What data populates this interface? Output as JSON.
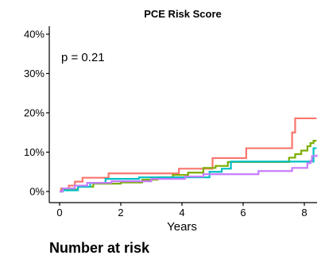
{
  "chart_data": {
    "type": "line",
    "title": "PCE Risk Score",
    "xlabel": "Years",
    "ylabel": "",
    "xlim": [
      -0.3,
      8.4
    ],
    "ylim": [
      -0.5,
      42
    ],
    "x_ticks": [
      0,
      2,
      4,
      6,
      8
    ],
    "x_tick_labels": [
      "0",
      "2",
      "4",
      "6",
      "8"
    ],
    "y_ticks": [
      0,
      10,
      20,
      30,
      40
    ],
    "y_tick_labels": [
      "0%",
      "10%",
      "20%",
      "30%",
      "40%"
    ],
    "grid": false,
    "annotations": [
      "p = 0.21"
    ],
    "series": [
      {
        "color": "#F8766D",
        "points": [
          [
            0,
            0
          ],
          [
            0.05,
            0.8
          ],
          [
            0.25,
            0.8
          ],
          [
            0.3,
            1.5
          ],
          [
            0.45,
            1.5
          ],
          [
            0.5,
            2.5
          ],
          [
            0.7,
            2.5
          ],
          [
            0.75,
            3.5
          ],
          [
            1.5,
            3.5
          ],
          [
            1.6,
            4.6
          ],
          [
            3.8,
            4.6
          ],
          [
            3.9,
            5.8
          ],
          [
            4.9,
            5.8
          ],
          [
            5,
            8.5
          ],
          [
            6,
            8.5
          ],
          [
            6.1,
            11
          ],
          [
            7.5,
            11
          ],
          [
            7.6,
            15
          ],
          [
            7.7,
            18.6
          ],
          [
            8.4,
            18.6
          ]
        ]
      },
      {
        "color": "#7CAE00",
        "points": [
          [
            0,
            0
          ],
          [
            0.1,
            0.5
          ],
          [
            0.5,
            0.5
          ],
          [
            0.6,
            1.2
          ],
          [
            1.0,
            1.2
          ],
          [
            1.1,
            2
          ],
          [
            1.9,
            2
          ],
          [
            2.0,
            2.3
          ],
          [
            2.6,
            2.3
          ],
          [
            2.7,
            3
          ],
          [
            3.1,
            3
          ],
          [
            3.2,
            3.6
          ],
          [
            3.6,
            3.6
          ],
          [
            3.7,
            4.2
          ],
          [
            4.1,
            4.2
          ],
          [
            4.2,
            4.8
          ],
          [
            4.6,
            4.8
          ],
          [
            4.7,
            6
          ],
          [
            5.0,
            6
          ],
          [
            5.1,
            6.5
          ],
          [
            5.4,
            6.5
          ],
          [
            5.5,
            7.5
          ],
          [
            7.3,
            7.5
          ],
          [
            7.5,
            8.6
          ],
          [
            7.7,
            9.5
          ],
          [
            7.9,
            10.4
          ],
          [
            8.1,
            11.5
          ],
          [
            8.2,
            12.3
          ],
          [
            8.3,
            12.9
          ],
          [
            8.4,
            12.9
          ]
        ]
      },
      {
        "color": "#00BFC4",
        "points": [
          [
            0,
            0
          ],
          [
            0.1,
            0.3
          ],
          [
            0.5,
            0.3
          ],
          [
            0.6,
            1.2
          ],
          [
            0.9,
            1.2
          ],
          [
            1.0,
            2.2
          ],
          [
            1.4,
            2.2
          ],
          [
            1.5,
            3.2
          ],
          [
            2.5,
            3.2
          ],
          [
            2.6,
            3.6
          ],
          [
            4.8,
            3.6
          ],
          [
            4.9,
            5
          ],
          [
            5.2,
            5
          ],
          [
            5.3,
            5.8
          ],
          [
            5.5,
            5.8
          ],
          [
            5.6,
            7.6
          ],
          [
            8.2,
            7.6
          ],
          [
            8.3,
            11
          ],
          [
            8.4,
            11
          ]
        ]
      },
      {
        "color": "#C77CFF",
        "points": [
          [
            0,
            0
          ],
          [
            0.1,
            0.8
          ],
          [
            0.4,
            0.8
          ],
          [
            0.5,
            1.5
          ],
          [
            0.8,
            1.5
          ],
          [
            0.9,
            2.2
          ],
          [
            1.6,
            2.2
          ],
          [
            1.7,
            2.6
          ],
          [
            2.9,
            2.6
          ],
          [
            3.0,
            3.2
          ],
          [
            4.0,
            3.2
          ],
          [
            4.1,
            3.8
          ],
          [
            4.6,
            3.8
          ],
          [
            4.7,
            4.4
          ],
          [
            6.4,
            4.4
          ],
          [
            6.5,
            5.2
          ],
          [
            7.5,
            5.2
          ],
          [
            7.6,
            6
          ],
          [
            8.0,
            6
          ],
          [
            8.1,
            7.2
          ],
          [
            8.2,
            7.8
          ],
          [
            8.25,
            9
          ],
          [
            8.4,
            9.4
          ]
        ]
      }
    ]
  },
  "risk_table": {
    "title": "Number at risk"
  }
}
